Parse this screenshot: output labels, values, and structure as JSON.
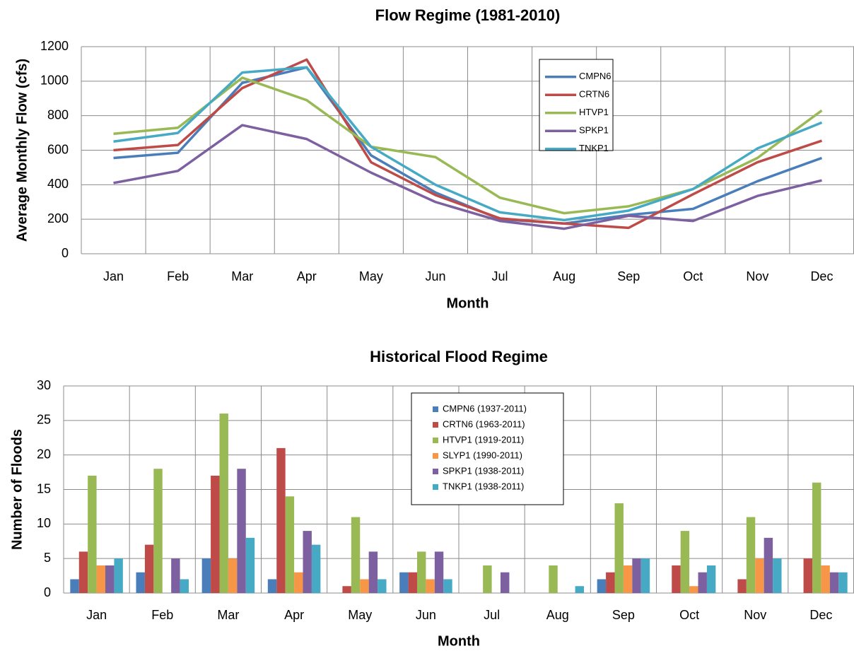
{
  "chart_data": [
    {
      "type": "line",
      "title": "Flow Regime (1981-2010)",
      "x_label": "Month",
      "y_label": "Average Monthly Flow (cfs)",
      "categories": [
        "Jan",
        "Feb",
        "Mar",
        "Apr",
        "May",
        "Jun",
        "Jul",
        "Aug",
        "Sep",
        "Oct",
        "Nov",
        "Dec"
      ],
      "ylim": [
        0,
        1200
      ],
      "yticks": [
        0,
        200,
        400,
        600,
        800,
        1000,
        1200
      ],
      "grid": true,
      "legend": "upper right",
      "series": [
        {
          "name": "CMPN6",
          "color": "#4a7ebb",
          "values": [
            555,
            585,
            990,
            1080,
            570,
            355,
            200,
            175,
            225,
            260,
            420,
            555
          ]
        },
        {
          "name": "CRTN6",
          "color": "#be4b48",
          "values": [
            600,
            630,
            960,
            1125,
            530,
            340,
            205,
            175,
            150,
            345,
            530,
            655
          ]
        },
        {
          "name": "HTVP1",
          "color": "#98b954",
          "values": [
            695,
            730,
            1020,
            890,
            620,
            560,
            325,
            235,
            275,
            375,
            555,
            830
          ]
        },
        {
          "name": "SPKP1",
          "color": "#7d60a0",
          "values": [
            410,
            480,
            745,
            665,
            470,
            300,
            190,
            145,
            220,
            190,
            335,
            425
          ]
        },
        {
          "name": "TNKP1",
          "color": "#46aac5",
          "values": [
            650,
            700,
            1050,
            1080,
            620,
            400,
            240,
            195,
            250,
            375,
            610,
            760
          ]
        }
      ]
    },
    {
      "type": "bar",
      "title": "Historical Flood Regime",
      "x_label": "Month",
      "y_label": "Number of Floods",
      "categories": [
        "Jan",
        "Feb",
        "Mar",
        "Apr",
        "May",
        "Jun",
        "Jul",
        "Aug",
        "Sep",
        "Oct",
        "Nov",
        "Dec"
      ],
      "ylim": [
        0,
        30
      ],
      "yticks": [
        0,
        5,
        10,
        15,
        20,
        25,
        30
      ],
      "grid": true,
      "legend": "upper center",
      "series": [
        {
          "name": "CMPN6 (1937-2011)",
          "color": "#4a7ebb",
          "values": [
            2,
            3,
            5,
            2,
            null,
            3,
            null,
            null,
            2,
            null,
            null,
            null
          ]
        },
        {
          "name": "CRTN6 (1963-2011)",
          "color": "#be4b48",
          "values": [
            6,
            7,
            17,
            21,
            1,
            3,
            null,
            null,
            3,
            4,
            2,
            5
          ]
        },
        {
          "name": "HTVP1 (1919-2011)",
          "color": "#98b954",
          "values": [
            17,
            18,
            26,
            14,
            11,
            6,
            4,
            4,
            13,
            9,
            11,
            16
          ]
        },
        {
          "name": "SLYP1 (1990-2011)",
          "color": "#f79646",
          "values": [
            4,
            null,
            5,
            3,
            2,
            2,
            null,
            null,
            4,
            1,
            5,
            4
          ]
        },
        {
          "name": "SPKP1 (1938-2011)",
          "color": "#7d60a0",
          "values": [
            4,
            5,
            18,
            9,
            6,
            6,
            3,
            null,
            5,
            3,
            8,
            3
          ]
        },
        {
          "name": "TNKP1 (1938-2011)",
          "color": "#46aac5",
          "values": [
            5,
            2,
            8,
            7,
            2,
            2,
            null,
            1,
            5,
            4,
            5,
            3
          ]
        }
      ]
    }
  ]
}
